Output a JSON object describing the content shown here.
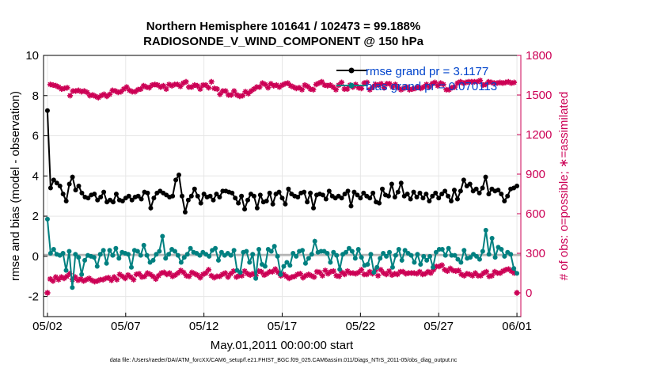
{
  "chart_data": {
    "type": "line",
    "title_line1": "Northern Hemisphere 101641 / 102473 = 99.188%",
    "title_line2": "RADIOSONDE_V_WIND_COMPONENT @ 150 hPa",
    "xlabel": "May.01,2011 00:00:00 start",
    "ylabel_left": "rmse and bias (model - observation)",
    "ylabel_right": "# of obs: o=possible; ∗=assimilated",
    "footnote": "data file: /Users/raeder/DAI/ATM_forcXX/CAM6_setup/f.e21.FHIST_BGC.f09_025.CAM6assim.011/Diags_NTrS_2011-05/obs_diag_output.nc",
    "x_ticks": [
      "05/02",
      "05/07",
      "05/12",
      "05/17",
      "05/22",
      "05/27",
      "06/01"
    ],
    "x_tick_days": [
      1,
      6,
      11,
      16,
      21,
      26,
      31
    ],
    "xlim": [
      0.75,
      31.25
    ],
    "ylim_left": [
      -3,
      10
    ],
    "yticks_left": [
      "-2",
      "0",
      "2",
      "4",
      "6",
      "8",
      "10"
    ],
    "ylim_right": [
      -180,
      1800
    ],
    "yticks_right": [
      "0",
      "300",
      "600",
      "900",
      "1200",
      "1500",
      "1800"
    ],
    "legend": [
      "rmse grand pr = 3.1177",
      "bias grand pr = 0.070113"
    ],
    "colors": {
      "rmse": "#000000",
      "bias": "#008080",
      "counts": "#cc0055",
      "zero_line": "#b3b3b3",
      "axis_right": "#cc0055",
      "legend_text": "#0044cc"
    },
    "series": [
      {
        "name": "rmse",
        "values": [
          7.25,
          3.4,
          3.8,
          3.65,
          3.5,
          3.1,
          2.75,
          3.6,
          3.95,
          3.3,
          3.5,
          3.15,
          2.95,
          2.9,
          3.05,
          3.1,
          2.8,
          2.95,
          3.2,
          2.7,
          2.8,
          2.7,
          3.1,
          2.8,
          2.75,
          2.9,
          3.0,
          2.8,
          2.95,
          3.0,
          2.85,
          3.2,
          3.15,
          2.4,
          2.9,
          3.15,
          3.25,
          3.15,
          3.05,
          2.95,
          3.0,
          3.8,
          4.05,
          3.0,
          2.2,
          2.8,
          3.0,
          3.35,
          3.0,
          2.65,
          3.1,
          2.95,
          3.0,
          2.8,
          3.1,
          2.95,
          3.25,
          3.25,
          3.2,
          3.15,
          2.9,
          2.65,
          3.0,
          2.35,
          2.8,
          3.1,
          3.0,
          2.4,
          3.05,
          2.7,
          2.75,
          3.15,
          2.6,
          3.1,
          3.2,
          2.9,
          2.6,
          3.35,
          3.1,
          3.0,
          2.95,
          3.15,
          3.2,
          2.7,
          3.15,
          2.4,
          3.05,
          3.1,
          3.05,
          2.85,
          3.25,
          3.0,
          2.9,
          3.0,
          2.9,
          3.1,
          3.25,
          2.5,
          3.2,
          3.05,
          2.9,
          3.15,
          3.0,
          2.9,
          3.15,
          2.7,
          2.65,
          3.35,
          3.05,
          3.0,
          3.6,
          2.95,
          3.2,
          3.65,
          3.0,
          3.1,
          2.85,
          3.2,
          2.95,
          3.15,
          2.9,
          3.1,
          2.75,
          3.0,
          3.15,
          2.9,
          3.1,
          3.25,
          3.0,
          2.75,
          3.3,
          2.85,
          3.25,
          3.8,
          3.5,
          3.6,
          3.25,
          3.35,
          3.15,
          3.4,
          3.95,
          3.1,
          3.35,
          3.25,
          3.3,
          3.1,
          2.75,
          3.0,
          3.35,
          3.4,
          3.5
        ]
      },
      {
        "name": "bias",
        "values": [
          1.85,
          0.15,
          0.35,
          0.1,
          0.05,
          0.15,
          -0.7,
          0.25,
          -1.55,
          0.1,
          -0.05,
          -0.9,
          -0.2,
          0.05,
          0.0,
          -0.05,
          -0.5,
          0.1,
          0.3,
          -0.35,
          0.3,
          0.05,
          0.4,
          -0.1,
          0.2,
          0.15,
          0.1,
          -0.55,
          0.3,
          0.25,
          0.05,
          0.55,
          0.05,
          -0.3,
          -0.2,
          0.1,
          0.25,
          1.0,
          -0.1,
          0.1,
          0.35,
          0.25,
          0.05,
          -0.3,
          -0.05,
          0.1,
          0.4,
          0.2,
          0.15,
          0.05,
          0.2,
          0.1,
          0.0,
          0.3,
          0.4,
          -0.2,
          0.2,
          0.05,
          0.15,
          0.05,
          0.3,
          -0.7,
          -0.8,
          0.2,
          0.25,
          -0.3,
          0.1,
          -1.1,
          0.35,
          -0.4,
          -0.5,
          0.35,
          0.25,
          0.5,
          0.0,
          -0.9,
          -0.5,
          -0.3,
          -0.45,
          0.15,
          0.0,
          0.25,
          0.3,
          -0.35,
          -0.1,
          0.1,
          0.75,
          0.2,
          0.25,
          0.25,
          0.15,
          -0.3,
          0.2,
          0.05,
          -0.65,
          0.1,
          0.2,
          0.4,
          0.25,
          -0.1,
          0.35,
          -0.05,
          -0.45,
          -0.4,
          0.1,
          -0.8,
          -0.55,
          -0.1,
          0.15,
          0.0,
          0.2,
          -0.55,
          0.05,
          0.35,
          -0.2,
          0.3,
          0.15,
          0.05,
          -0.3,
          0.1,
          -0.4,
          0.0,
          -0.2,
          0.0,
          -0.55,
          0.2,
          0.35,
          0.35,
          0.05,
          0.4,
          0.05,
          0.05,
          -0.15,
          -0.3,
          0.3,
          -0.1,
          -0.05,
          0.1,
          0.0,
          -0.15,
          0.25,
          1.3,
          0.1,
          0.9,
          -0.05,
          0.45,
          0.35,
          0.0,
          0.2,
          0.1,
          -0.6,
          -0.85
        ]
      },
      {
        "name": "obs_possible",
        "values": [
          0,
          1580,
          1575,
          1570,
          1560,
          1545,
          1550,
          1555,
          1495,
          1530,
          1530,
          1535,
          1525,
          1530,
          1520,
          1495,
          1500,
          1490,
          1480,
          1495,
          1505,
          1490,
          1505,
          1535,
          1530,
          1520,
          1525,
          1545,
          1560,
          1535,
          1525,
          1525,
          1540,
          1545,
          1570,
          1560,
          1555,
          1575,
          1580,
          1575,
          1560,
          1570,
          1545,
          1580,
          1570,
          1580,
          1580,
          1565,
          1590,
          1600,
          1560,
          1560,
          1575,
          1570,
          1545,
          1575,
          1575,
          1555,
          1600,
          1550,
          1545,
          1505,
          1530,
          1530,
          1500,
          1500,
          1530,
          1500,
          1490,
          1495,
          1525,
          1510,
          1530,
          1545,
          1560,
          1560,
          1590,
          1580,
          1555,
          1585,
          1570,
          1575,
          1560,
          1575,
          1585,
          1590,
          1570,
          1560,
          1550,
          1555,
          1540,
          1575,
          1565,
          1545,
          1540,
          1580,
          1590,
          1600,
          1575,
          1570,
          1575,
          1560,
          1540,
          1575,
          1595,
          1545,
          1545,
          1575,
          1560,
          1580,
          1555,
          1550,
          1590,
          1595,
          1540,
          1560,
          1580,
          1575,
          1585,
          1555,
          1585,
          1585,
          1560,
          1580,
          1555,
          1540,
          1550,
          1560,
          1540,
          1545,
          1550,
          1560,
          1550,
          1560,
          1580,
          1560,
          1585,
          1595,
          1570,
          1590,
          1580,
          1540,
          1540,
          1555,
          1560,
          1590,
          1600,
          1590,
          1595,
          1600,
          1600,
          1600,
          1600,
          1610,
          1575,
          1580,
          1600,
          1595,
          1590,
          1590,
          1595,
          1590,
          1595,
          1600,
          1590,
          1595,
          0
        ]
      },
      {
        "name": "obs_assimilated",
        "values": [
          0,
          105,
          90,
          120,
          100,
          120,
          110,
          125,
          145,
          100,
          120,
          95,
          105,
          90,
          100,
          110,
          95,
          85,
          90,
          100,
          100,
          110,
          115,
          95,
          120,
          100,
          140,
          125,
          110,
          135,
          120,
          100,
          140,
          145,
          120,
          125,
          150,
          140,
          125,
          105,
          130,
          150,
          155,
          140,
          150,
          125,
          135,
          150,
          170,
          155,
          130,
          125,
          155,
          145,
          135,
          115,
          140,
          150,
          175,
          130,
          115,
          125,
          125,
          140,
          150,
          120,
          145,
          165,
          120,
          130,
          130,
          165,
          145,
          135,
          145,
          130,
          165,
          160,
          135,
          145,
          160,
          160,
          180,
          155,
          130,
          140,
          125,
          110,
          120,
          125,
          140,
          145,
          115,
          130,
          140,
          130,
          120,
          160,
          155,
          130,
          170,
          145,
          160,
          165,
          130,
          125,
          155,
          140,
          165,
          150,
          150,
          145,
          155,
          175,
          140,
          140,
          160,
          145,
          170,
          130,
          175,
          150,
          140,
          165,
          135,
          145,
          140,
          160,
          160,
          145,
          150,
          150,
          150,
          145,
          160,
          140,
          145,
          160,
          150,
          175,
          200,
          200,
          210,
          175,
          165,
          185,
          170,
          165,
          170,
          140,
          130,
          145,
          140,
          130,
          150,
          130,
          130,
          150,
          160,
          125,
          130,
          160,
          150,
          150,
          165,
          175,
          180,
          165,
          150,
          0
        ]
      }
    ]
  }
}
